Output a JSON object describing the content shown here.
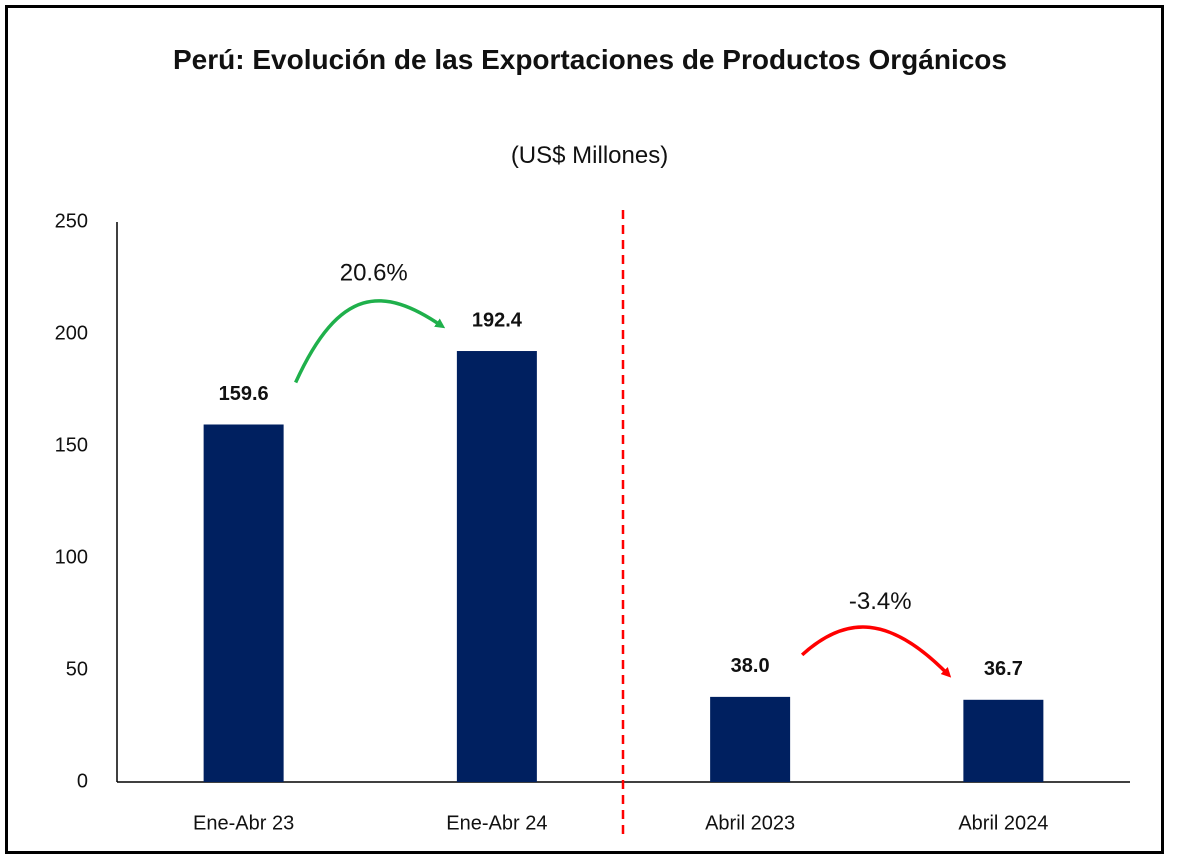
{
  "chart_data": {
    "type": "bar",
    "title": "Perú: Evolución de las Exportaciones de Productos Orgánicos",
    "subtitle": "(US$ Millones)",
    "categories": [
      "Ene-Abr 23",
      "Ene-Abr 24",
      "Abril 2023",
      "Abril 2024"
    ],
    "values": [
      159.6,
      192.4,
      38.0,
      36.7
    ],
    "value_labels": [
      "159.6",
      "192.4",
      "38.0",
      "36.7"
    ],
    "color": "#002060",
    "ylim": [
      0,
      250
    ],
    "yticks": [
      0,
      50,
      100,
      150,
      200,
      250
    ],
    "grid": false,
    "annotations": [
      {
        "text": "20.6%",
        "color": "#1fb04b"
      },
      {
        "text": "-3.4%",
        "color": "#ff0000"
      }
    ]
  }
}
